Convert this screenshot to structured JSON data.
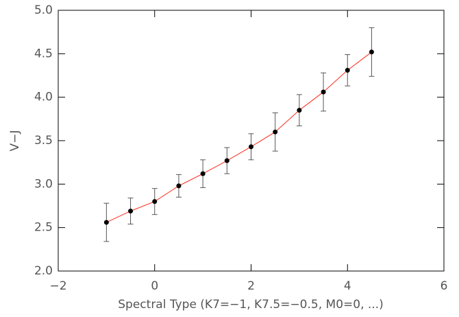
{
  "chart_data": {
    "type": "errorbar",
    "xlabel": "Spectral Type (K7=−1, K7.5=−0.5, M0=0, ...)",
    "ylabel": "V−J",
    "x": [
      -1,
      -0.5,
      0,
      0.5,
      1,
      1.5,
      2,
      2.5,
      3,
      3.5,
      4,
      4.5
    ],
    "values": [
      2.56,
      2.69,
      2.8,
      2.98,
      3.12,
      3.27,
      3.43,
      3.6,
      3.85,
      4.06,
      4.31,
      4.52
    ],
    "errors": [
      0.22,
      0.15,
      0.15,
      0.13,
      0.16,
      0.15,
      0.15,
      0.22,
      0.18,
      0.22,
      0.18,
      0.28
    ],
    "marker_color": "#000000",
    "line_color": "#ff2a1a",
    "error_color": "#555555",
    "xlim": [
      -2,
      6
    ],
    "xticks": [
      {
        "value": -2,
        "label": "−2"
      },
      0,
      2,
      4,
      6
    ],
    "ylim": [
      2.0,
      5.0
    ],
    "yticks": [
      {
        "value": 2.0,
        "label": "2.0"
      },
      2.5,
      {
        "value": 3.0,
        "label": "3.0"
      },
      3.5,
      {
        "value": 4.0,
        "label": "4.0"
      },
      4.5,
      {
        "value": 5.0,
        "label": "5.0"
      }
    ]
  }
}
